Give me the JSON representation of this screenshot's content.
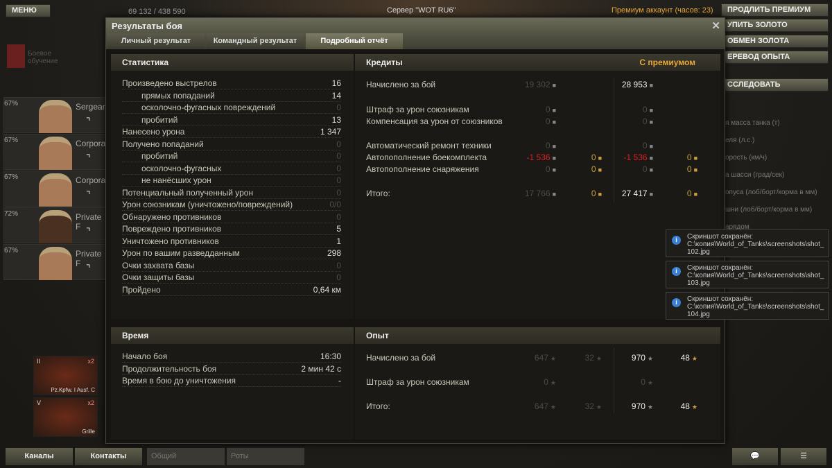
{
  "top": {
    "menu": "МЕНЮ",
    "xp": "69 132 / 438 590",
    "server": "Сервер \"WOT RU6\"",
    "premium": "Премиум аккаунт (часов:  23)",
    "training": "Боевое обучение"
  },
  "right_buttons": [
    "ПРОДЛИТЬ ПРЕМИУМ",
    "УПИТЬ ЗОЛОТО",
    "ОБМЕН ЗОЛОТА",
    "ЕРЕВОД ОПЫТА",
    "ССЛЕДОВАТЬ"
  ],
  "right_specs": [
    "я масса танка (т)",
    "еля (л.с.)",
    "орость (км/ч)",
    "а шасси (град/сек)",
    "опуса (лоб/борт/корма в мм)",
    "шни (лоб/борт/корма в мм)",
    "арядом"
  ],
  "crew": [
    {
      "pct": "67%",
      "rank": "Sergeant"
    },
    {
      "pct": "67%",
      "rank": "Corporal"
    },
    {
      "pct": "67%",
      "rank": "Corporal"
    },
    {
      "pct": "72%",
      "rank": "Private F"
    },
    {
      "pct": "67%",
      "rank": "Private F"
    }
  ],
  "tanks": [
    {
      "tier": "II",
      "name": "Pz.Kpfw. I Ausf. C",
      "bonus": "x2"
    },
    {
      "tier": "V",
      "name": "Grille",
      "bonus": "x2"
    }
  ],
  "window": {
    "title": "Результаты боя",
    "tabs": [
      "Личный результат",
      "Командный результат",
      "Подробный отчёт"
    ],
    "active_tab": 2
  },
  "stats": {
    "title": "Статистика",
    "rows": [
      {
        "l": "Произведено выстрелов",
        "v": "16",
        "i": 0
      },
      {
        "l": "прямых попаданий",
        "v": "14",
        "i": 1
      },
      {
        "l": "осколочно-фугасных повреждений",
        "v": "0",
        "i": 1
      },
      {
        "l": "пробитий",
        "v": "13",
        "i": 1
      },
      {
        "l": "Нанесено урона",
        "v": "1 347",
        "i": 0
      },
      {
        "l": "Получено попаданий",
        "v": "0",
        "i": 0
      },
      {
        "l": "пробитий",
        "v": "0",
        "i": 1
      },
      {
        "l": "осколочно-фугасных",
        "v": "0",
        "i": 1
      },
      {
        "l": "не нанёсших урон",
        "v": "0",
        "i": 1
      },
      {
        "l": "Потенциальный полученный урон",
        "v": "0",
        "i": 0
      },
      {
        "l": "Урон союзникам (уничтожено/повреждений)",
        "v": "0/0",
        "i": 0
      },
      {
        "l": "Обнаружено противников",
        "v": "0",
        "i": 0
      },
      {
        "l": "Повреждено противников",
        "v": "5",
        "i": 0
      },
      {
        "l": "Уничтожено противников",
        "v": "1",
        "i": 0
      },
      {
        "l": "Урон по вашим разведданным",
        "v": "298",
        "i": 0
      },
      {
        "l": "Очки захвата базы",
        "v": "0",
        "i": 0
      },
      {
        "l": "Очки защиты базы",
        "v": "0",
        "i": 0
      },
      {
        "l": "Пройдено",
        "v": "0,64 км",
        "i": 0
      }
    ]
  },
  "credits": {
    "title": "Кредиты",
    "premium_label": "С премиумом",
    "rows": [
      {
        "l": "Начислено за бой",
        "b": "19 302",
        "bg": "",
        "p": "28 953",
        "pg": ""
      },
      {
        "l": "Штраф за урон союзникам",
        "b": "0",
        "bg": "",
        "p": "0",
        "pg": ""
      },
      {
        "l": "Компенсация за урон от союзников",
        "b": "0",
        "bg": "",
        "p": "0",
        "pg": ""
      },
      {
        "l": "Автоматический ремонт техники",
        "b": "0",
        "bg": "",
        "p": "0",
        "pg": ""
      },
      {
        "l": "Автопополнение боекомплекта",
        "b": "-1 536",
        "bg": "0",
        "p": "-1 536",
        "pg": "0"
      },
      {
        "l": "Автопополнение снаряжения",
        "b": "0",
        "bg": "0",
        "p": "0",
        "pg": "0"
      },
      {
        "l": "Итого:",
        "b": "17 766",
        "bg": "0",
        "p": "27 417",
        "pg": "0"
      }
    ]
  },
  "time": {
    "title": "Время",
    "rows": [
      {
        "l": "Начало боя",
        "v": "16:30"
      },
      {
        "l": "Продолжительность боя",
        "v": "2 мин 42 с"
      },
      {
        "l": "Время в бою до уничтожения",
        "v": "-"
      }
    ]
  },
  "exp": {
    "title": "Опыт",
    "rows": [
      {
        "l": "Начислено за бой",
        "b": "647",
        "bf": "32",
        "p": "970",
        "pf": "48"
      },
      {
        "l": "Штраф за урон союзникам",
        "b": "0",
        "bf": "",
        "p": "0",
        "pf": ""
      },
      {
        "l": "Итого:",
        "b": "647",
        "bf": "32",
        "p": "970",
        "pf": "48"
      }
    ]
  },
  "toasts": [
    {
      "t": "Скриншот сохранён:",
      "p": "C:\\копия\\World_of_Tanks\\screenshots\\shot_102.jpg"
    },
    {
      "t": "Скриншот сохранён:",
      "p": "C:\\копия\\World_of_Tanks\\screenshots\\shot_103.jpg"
    },
    {
      "t": "Скриншот сохранён:",
      "p": "C:\\копия\\World_of_Tanks\\screenshots\\shot_104.jpg"
    }
  ],
  "bottom": {
    "channels": "Каналы",
    "contacts": "Контакты",
    "common": "Общий",
    "companies": "Роты"
  },
  "colors": {
    "accent": "#e8a83a",
    "negative": "#d22222",
    "gold": "#c9a040"
  }
}
